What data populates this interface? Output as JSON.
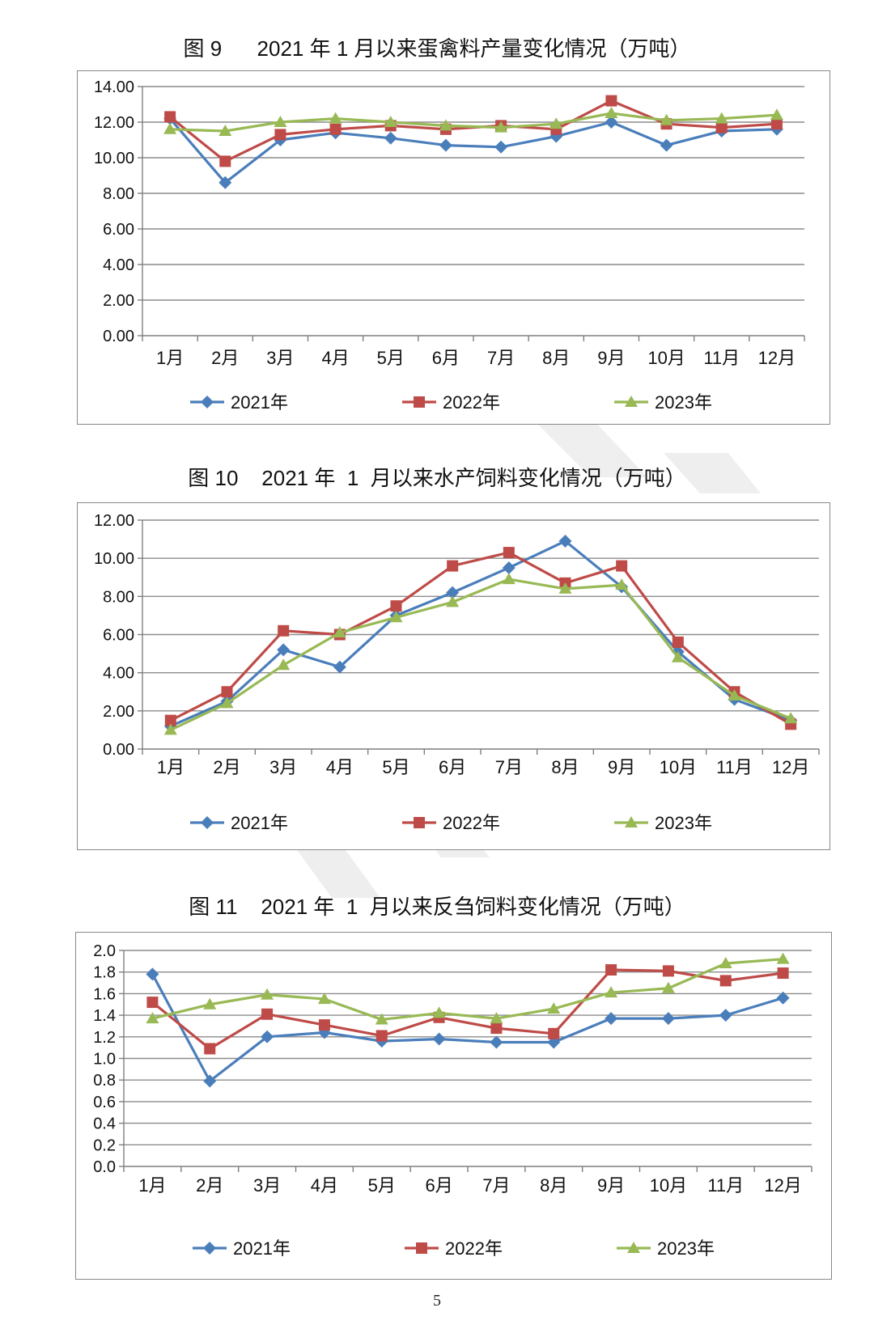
{
  "colors": {
    "series2021": "#4a7ebb",
    "series2022": "#be4b48",
    "series2023": "#98b954",
    "grid": "#8c8c8c",
    "axis": "#7f7f7f"
  },
  "chart_data": [
    {
      "type": "line",
      "title": "图 9      2021 年 1 月以来蛋禽料产量变化情况（万吨）",
      "categories": [
        "1月",
        "2月",
        "3月",
        "4月",
        "5月",
        "6月",
        "7月",
        "8月",
        "9月",
        "10月",
        "11月",
        "12月"
      ],
      "ylim": [
        0,
        14
      ],
      "yticks": [
        "0.00",
        "2.00",
        "4.00",
        "6.00",
        "8.00",
        "10.00",
        "12.00",
        "14.00"
      ],
      "grid": true,
      "legend": "bottom",
      "series": [
        {
          "name": "2021年",
          "marker": "diamond",
          "values": [
            12.2,
            8.6,
            11.0,
            11.4,
            11.1,
            10.7,
            10.6,
            11.2,
            12.0,
            10.7,
            11.5,
            11.6
          ]
        },
        {
          "name": "2022年",
          "marker": "square",
          "values": [
            12.3,
            9.8,
            11.3,
            11.6,
            11.8,
            11.6,
            11.8,
            11.6,
            13.2,
            11.9,
            11.7,
            11.9
          ]
        },
        {
          "name": "2023年",
          "marker": "triangle",
          "values": [
            11.6,
            11.5,
            12.0,
            12.2,
            12.0,
            11.8,
            11.7,
            11.9,
            12.5,
            12.1,
            12.2,
            12.4
          ]
        }
      ]
    },
    {
      "type": "line",
      "title": "图 10    2021 年  1  月以来水产饲料变化情况（万吨）",
      "categories": [
        "1月",
        "2月",
        "3月",
        "4月",
        "5月",
        "6月",
        "7月",
        "8月",
        "9月",
        "10月",
        "11月",
        "12月"
      ],
      "ylim": [
        0,
        12
      ],
      "yticks": [
        "0.00",
        "2.00",
        "4.00",
        "6.00",
        "8.00",
        "10.00",
        "12.00"
      ],
      "grid": true,
      "legend": "bottom",
      "series": [
        {
          "name": "2021年",
          "marker": "diamond",
          "values": [
            1.2,
            2.5,
            5.2,
            4.3,
            7.0,
            8.2,
            9.5,
            10.9,
            8.5,
            5.1,
            2.6,
            1.5
          ]
        },
        {
          "name": "2022年",
          "marker": "square",
          "values": [
            1.5,
            3.0,
            6.2,
            6.0,
            7.5,
            9.6,
            10.3,
            8.7,
            9.6,
            5.6,
            3.0,
            1.3
          ]
        },
        {
          "name": "2023年",
          "marker": "triangle",
          "values": [
            1.0,
            2.4,
            4.4,
            6.1,
            6.9,
            7.7,
            8.9,
            8.4,
            8.6,
            4.8,
            2.8,
            1.6
          ]
        }
      ]
    },
    {
      "type": "line",
      "title": "图 11    2021 年  1  月以来反刍饲料变化情况（万吨）",
      "categories": [
        "1月",
        "2月",
        "3月",
        "4月",
        "5月",
        "6月",
        "7月",
        "8月",
        "9月",
        "10月",
        "11月",
        "12月"
      ],
      "ylim": [
        0,
        2
      ],
      "yticks": [
        "0.0",
        "0.2",
        "0.4",
        "0.6",
        "0.8",
        "1.0",
        "1.2",
        "1.4",
        "1.6",
        "1.8",
        "2.0"
      ],
      "grid": true,
      "legend": "bottom",
      "series": [
        {
          "name": "2021年",
          "marker": "diamond",
          "values": [
            1.78,
            0.79,
            1.2,
            1.24,
            1.16,
            1.18,
            1.15,
            1.15,
            1.37,
            1.37,
            1.4,
            1.56
          ]
        },
        {
          "name": "2022年",
          "marker": "square",
          "values": [
            1.52,
            1.09,
            1.41,
            1.31,
            1.21,
            1.38,
            1.28,
            1.23,
            1.82,
            1.81,
            1.72,
            1.79
          ]
        },
        {
          "name": "2023年",
          "marker": "triangle",
          "values": [
            1.37,
            1.5,
            1.59,
            1.55,
            1.36,
            1.42,
            1.37,
            1.46,
            1.61,
            1.65,
            1.88,
            1.92
          ]
        }
      ]
    }
  ],
  "page_number": "5"
}
